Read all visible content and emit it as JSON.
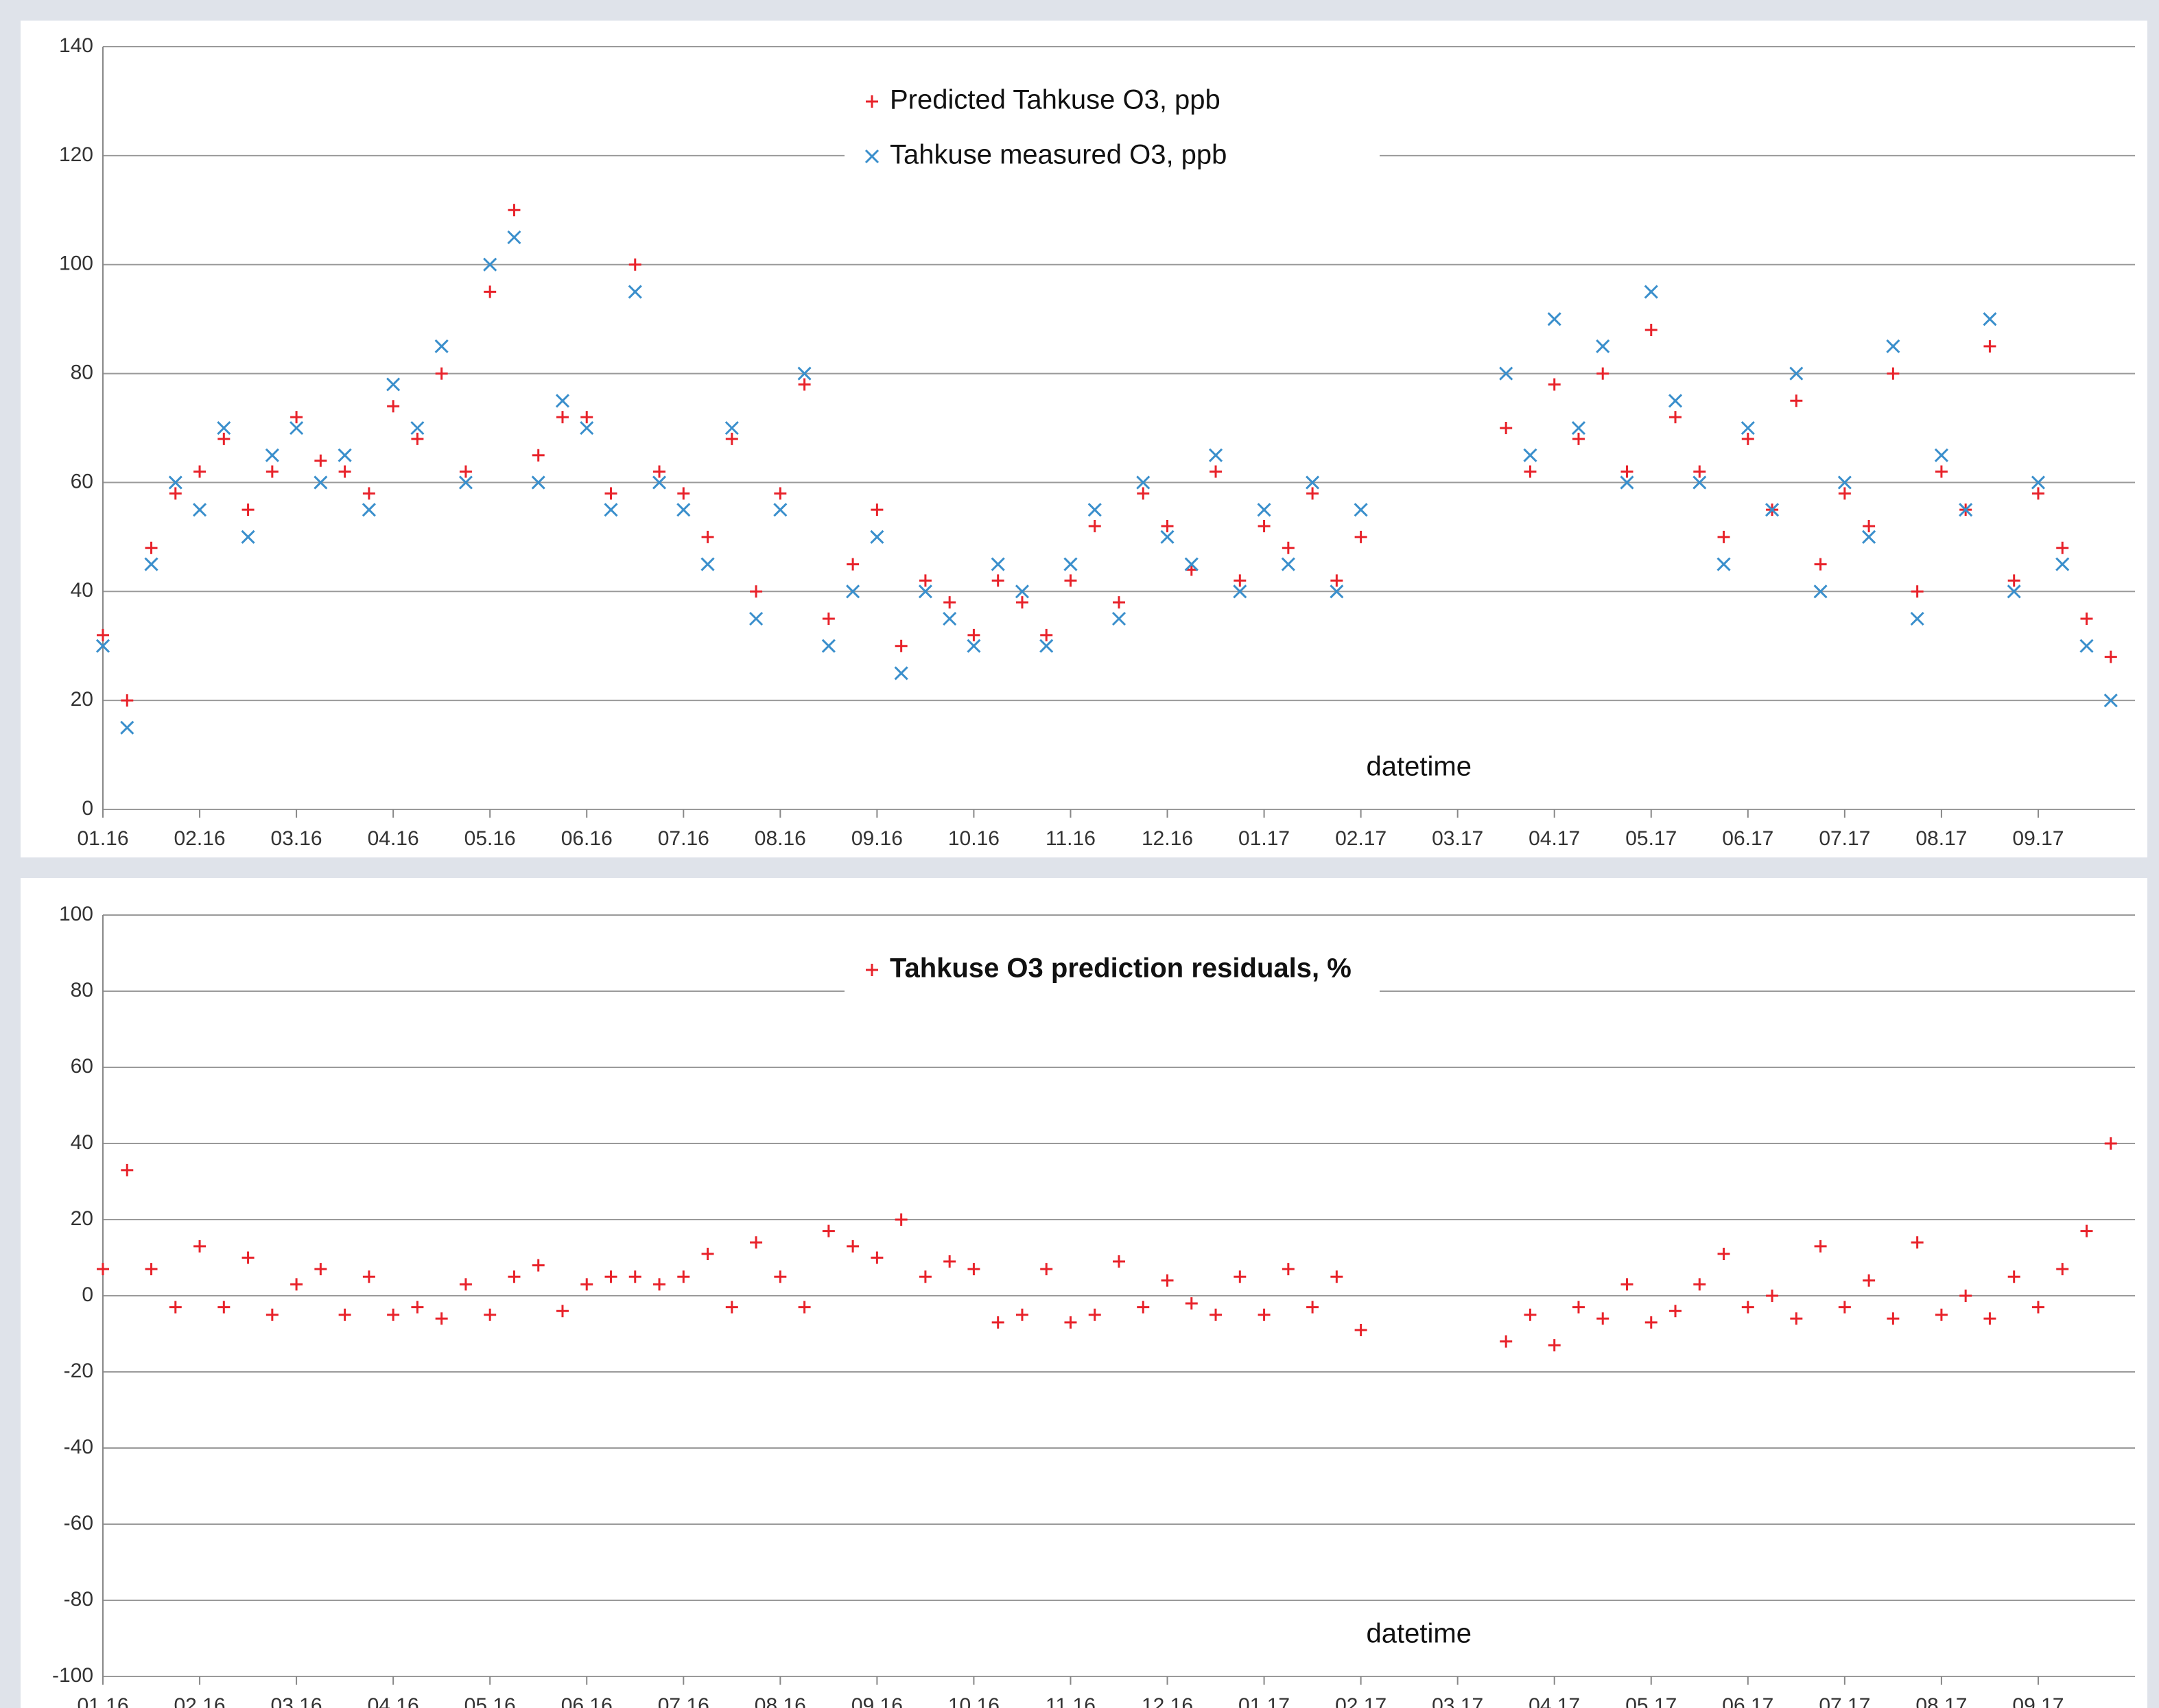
{
  "chart_data": [
    {
      "type": "scatter",
      "xlabel": "datetime",
      "x": [
        0,
        0.25,
        0.5,
        0.75,
        1,
        1.25,
        1.5,
        1.75,
        2,
        2.25,
        2.5,
        2.75,
        3,
        3.25,
        3.5,
        3.75,
        4,
        4.25,
        4.5,
        4.75,
        5,
        5.25,
        5.5,
        5.75,
        6,
        6.25,
        6.5,
        6.75,
        7,
        7.25,
        7.5,
        7.75,
        8,
        8.25,
        8.5,
        8.75,
        9,
        9.25,
        9.5,
        9.75,
        10,
        10.25,
        10.5,
        10.75,
        11,
        11.25,
        11.5,
        11.75,
        12,
        12.25,
        12.5,
        12.75,
        13,
        14.5,
        14.75,
        15,
        15.25,
        15.5,
        15.75,
        16,
        16.25,
        16.5,
        16.75,
        17,
        17.25,
        17.5,
        17.75,
        18,
        18.25,
        18.5,
        18.75,
        19,
        19.25,
        19.5,
        19.75,
        20,
        20.25,
        20.5,
        20.75
      ],
      "series": [
        {
          "name": "Predicted Tahkuse O3, ppb",
          "color": "#e8222a",
          "marker": "plus",
          "values": [
            32,
            20,
            48,
            58,
            62,
            68,
            55,
            62,
            72,
            64,
            62,
            58,
            74,
            68,
            80,
            62,
            95,
            110,
            65,
            72,
            72,
            58,
            100,
            62,
            58,
            50,
            68,
            40,
            58,
            78,
            35,
            45,
            55,
            30,
            42,
            38,
            32,
            42,
            38,
            32,
            42,
            52,
            38,
            58,
            52,
            44,
            62,
            42,
            52,
            48,
            58,
            42,
            50,
            70,
            62,
            78,
            68,
            80,
            62,
            88,
            72,
            62,
            50,
            68,
            55,
            75,
            45,
            58,
            52,
            80,
            40,
            62,
            55,
            85,
            42,
            58,
            48,
            35,
            28
          ]
        },
        {
          "name": "Tahkuse measured O3, ppb",
          "color": "#3a8fcc",
          "marker": "cross",
          "values": [
            30,
            15,
            45,
            60,
            55,
            70,
            50,
            65,
            70,
            60,
            65,
            55,
            78,
            70,
            85,
            60,
            100,
            105,
            60,
            75,
            70,
            55,
            95,
            60,
            55,
            45,
            70,
            35,
            55,
            80,
            30,
            40,
            50,
            25,
            40,
            35,
            30,
            45,
            40,
            30,
            45,
            55,
            35,
            60,
            50,
            45,
            65,
            40,
            55,
            45,
            60,
            40,
            55,
            80,
            65,
            90,
            70,
            85,
            60,
            95,
            75,
            60,
            45,
            70,
            55,
            80,
            40,
            60,
            50,
            85,
            35,
            65,
            55,
            90,
            40,
            60,
            45,
            30,
            20
          ]
        }
      ],
      "xlim": [
        0,
        21
      ],
      "xticks": [
        {
          "value": 0,
          "label": "01.16"
        },
        {
          "value": 1,
          "label": "02.16"
        },
        {
          "value": 2,
          "label": "03.16"
        },
        {
          "value": 3,
          "label": "04.16"
        },
        {
          "value": 4,
          "label": "05.16"
        },
        {
          "value": 5,
          "label": "06.16"
        },
        {
          "value": 6,
          "label": "07.16"
        },
        {
          "value": 7,
          "label": "08.16"
        },
        {
          "value": 8,
          "label": "09.16"
        },
        {
          "value": 9,
          "label": "10.16"
        },
        {
          "value": 10,
          "label": "11.16"
        },
        {
          "value": 11,
          "label": "12.16"
        },
        {
          "value": 12,
          "label": "01.17"
        },
        {
          "value": 13,
          "label": "02.17"
        },
        {
          "value": 14,
          "label": "03.17"
        },
        {
          "value": 15,
          "label": "04.17"
        },
        {
          "value": 16,
          "label": "05.17"
        },
        {
          "value": 17,
          "label": "06.17"
        },
        {
          "value": 18,
          "label": "07.17"
        },
        {
          "value": 19,
          "label": "08.17"
        },
        {
          "value": 20,
          "label": "09.17"
        }
      ],
      "ylim": [
        0,
        140
      ],
      "yticks": [
        0,
        20,
        40,
        60,
        80,
        100,
        120,
        140
      ],
      "grid": true,
      "legend": "top"
    },
    {
      "type": "scatter",
      "xlabel": "datetime",
      "x": [
        0,
        0.25,
        0.5,
        0.75,
        1,
        1.25,
        1.5,
        1.75,
        2,
        2.25,
        2.5,
        2.75,
        3,
        3.25,
        3.5,
        3.75,
        4,
        4.25,
        4.5,
        4.75,
        5,
        5.25,
        5.5,
        5.75,
        6,
        6.25,
        6.5,
        6.75,
        7,
        7.25,
        7.5,
        7.75,
        8,
        8.25,
        8.5,
        8.75,
        9,
        9.25,
        9.5,
        9.75,
        10,
        10.25,
        10.5,
        10.75,
        11,
        11.25,
        11.5,
        11.75,
        12,
        12.25,
        12.5,
        12.75,
        13,
        14.5,
        14.75,
        15,
        15.25,
        15.5,
        15.75,
        16,
        16.25,
        16.5,
        16.75,
        17,
        17.25,
        17.5,
        17.75,
        18,
        18.25,
        18.5,
        18.75,
        19,
        19.25,
        19.5,
        19.75,
        20,
        20.25,
        20.5,
        20.75
      ],
      "series": [
        {
          "name": "Tahkuse O3 prediction residuals, %",
          "color": "#e8222a",
          "marker": "plus",
          "bold": true,
          "values": [
            7,
            33,
            7,
            -3,
            13,
            -3,
            10,
            -5,
            3,
            7,
            -5,
            5,
            -5,
            -3,
            -6,
            3,
            -5,
            5,
            8,
            -4,
            3,
            5,
            5,
            3,
            5,
            11,
            -3,
            14,
            5,
            -3,
            17,
            13,
            10,
            20,
            5,
            9,
            7,
            -7,
            -5,
            7,
            -7,
            -5,
            9,
            -3,
            4,
            -2,
            -5,
            5,
            -5,
            7,
            -3,
            5,
            -9,
            -12,
            -5,
            -13,
            -3,
            -6,
            3,
            -7,
            -4,
            3,
            11,
            -3,
            0,
            -6,
            13,
            -3,
            4,
            -6,
            14,
            -5,
            0,
            -6,
            5,
            -3,
            7,
            17,
            40
          ]
        }
      ],
      "xlim": [
        0,
        21
      ],
      "xticks": [
        {
          "value": 0,
          "label": "01.16"
        },
        {
          "value": 1,
          "label": "02.16"
        },
        {
          "value": 2,
          "label": "03.16"
        },
        {
          "value": 3,
          "label": "04.16"
        },
        {
          "value": 4,
          "label": "05.16"
        },
        {
          "value": 5,
          "label": "06.16"
        },
        {
          "value": 6,
          "label": "07.16"
        },
        {
          "value": 7,
          "label": "08.16"
        },
        {
          "value": 8,
          "label": "09.16"
        },
        {
          "value": 9,
          "label": "10.16"
        },
        {
          "value": 10,
          "label": "11.16"
        },
        {
          "value": 11,
          "label": "12.16"
        },
        {
          "value": 12,
          "label": "01.17"
        },
        {
          "value": 13,
          "label": "02.17"
        },
        {
          "value": 14,
          "label": "03.17"
        },
        {
          "value": 15,
          "label": "04.17"
        },
        {
          "value": 16,
          "label": "05.17"
        },
        {
          "value": 17,
          "label": "06.17"
        },
        {
          "value": 18,
          "label": "07.17"
        },
        {
          "value": 19,
          "label": "08.17"
        },
        {
          "value": 20,
          "label": "09.17"
        }
      ],
      "ylim": [
        -100,
        100
      ],
      "yticks": [
        -100,
        -80,
        -60,
        -40,
        -20,
        0,
        20,
        40,
        60,
        80,
        100
      ],
      "grid": true,
      "legend": "top"
    }
  ]
}
